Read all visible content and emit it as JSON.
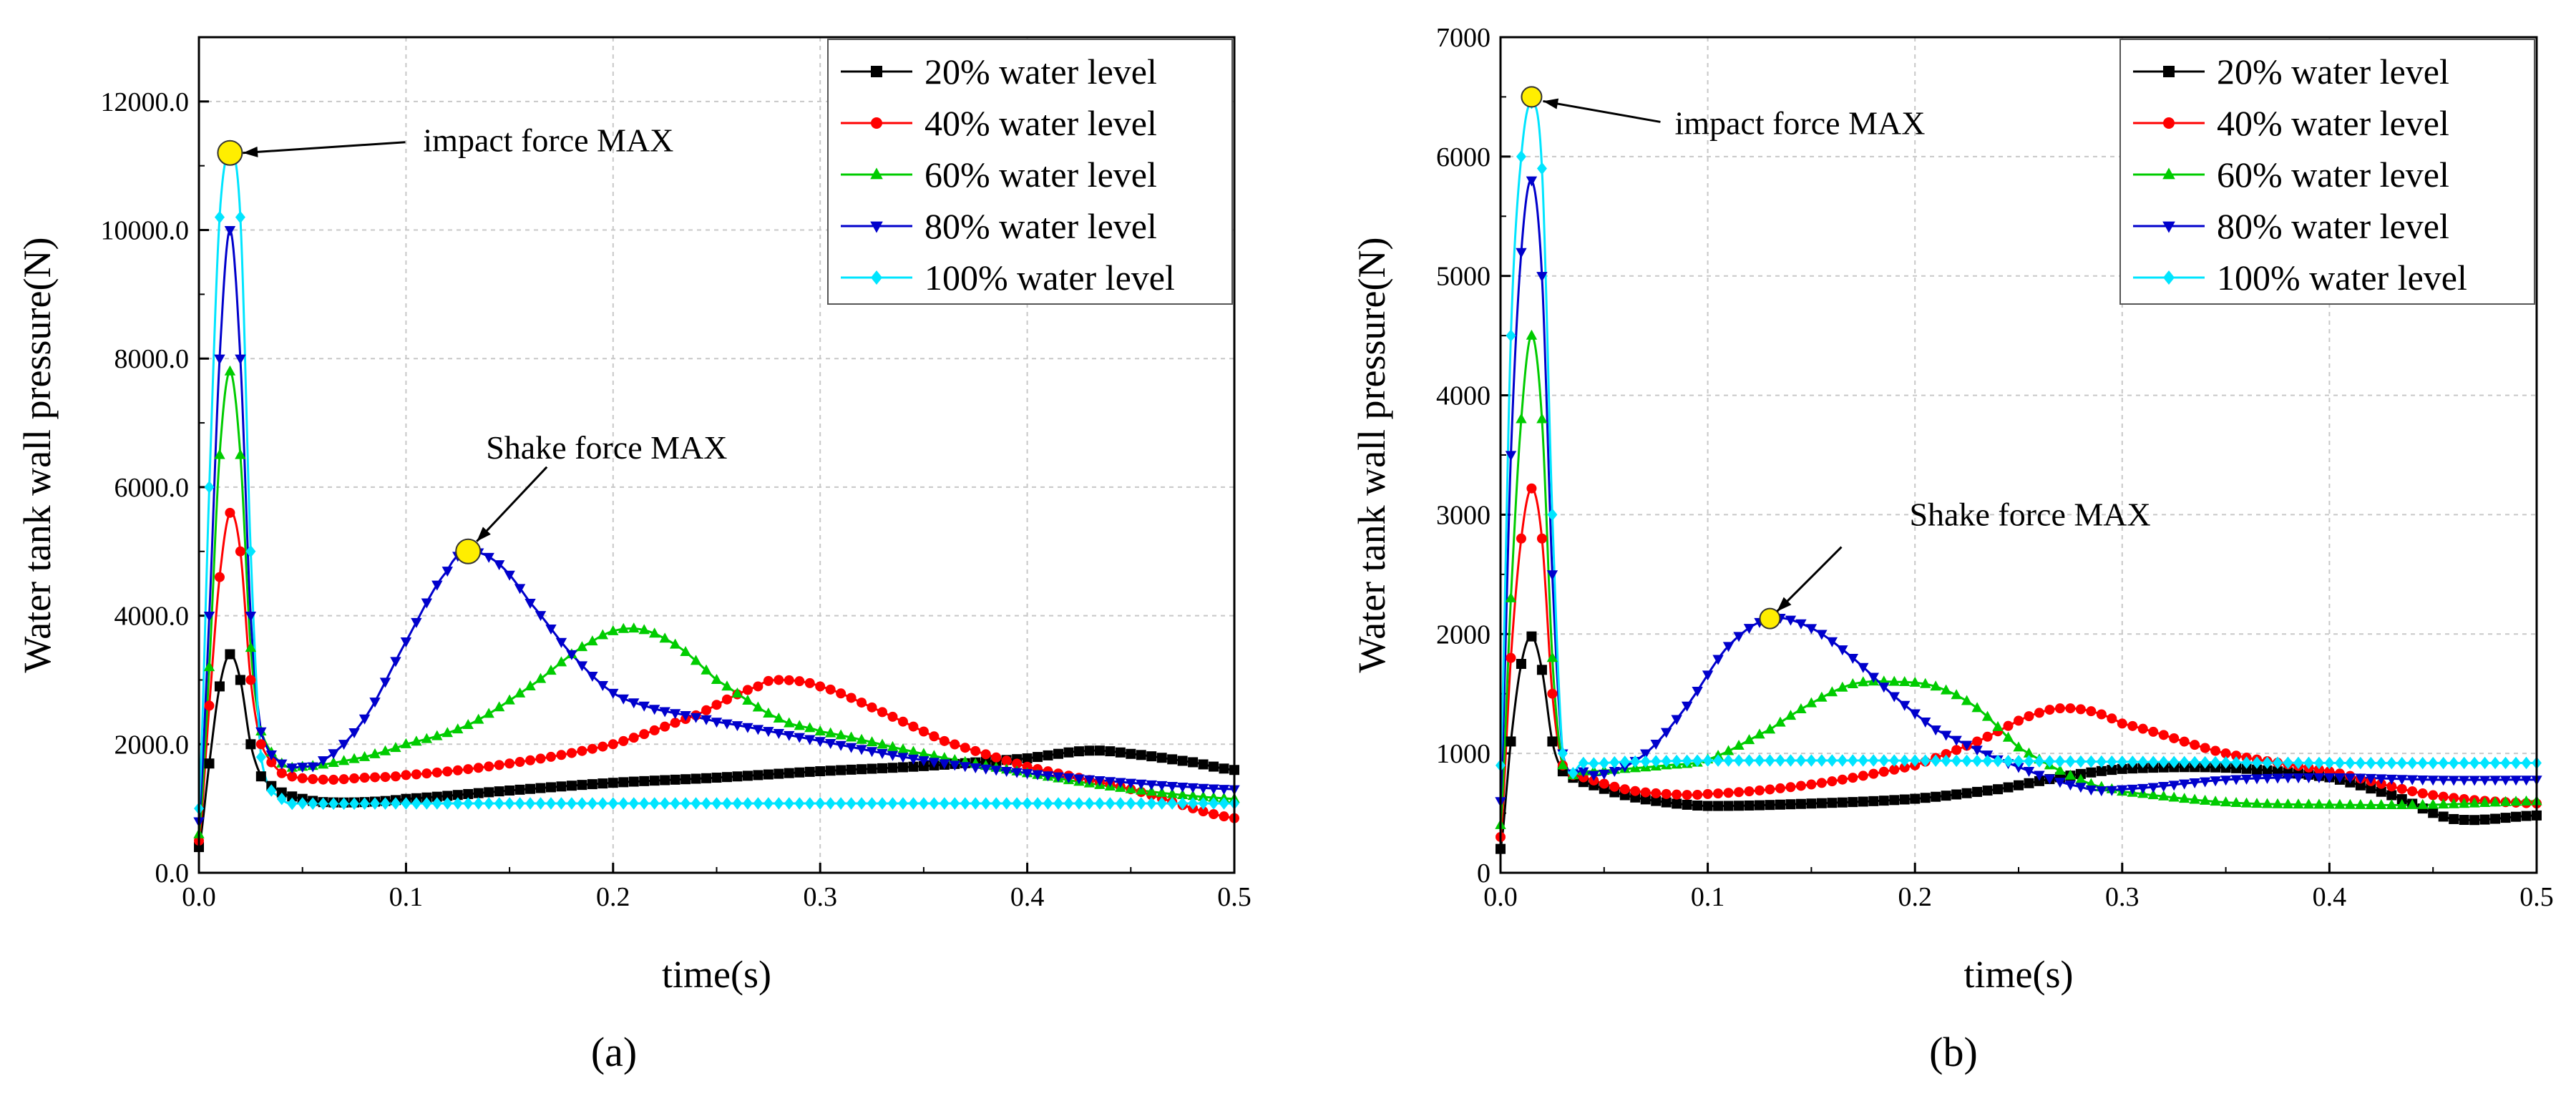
{
  "figure": {
    "panel_labels": [
      "(a)",
      "(b)"
    ]
  },
  "chart_data": [
    {
      "type": "line",
      "panel": "(a)",
      "xlabel": "time(s)",
      "ylabel": "Water tank wall pressure(N)",
      "xlim": [
        0,
        0.5
      ],
      "ylim": [
        0,
        13000
      ],
      "xticks": [
        0,
        0.1,
        0.2,
        0.3,
        0.4,
        0.5
      ],
      "xtick_labels": [
        "0.0",
        "0.1",
        "0.2",
        "0.3",
        "0.4",
        "0.5"
      ],
      "yticks": [
        0,
        2000,
        4000,
        6000,
        8000,
        10000,
        12000
      ],
      "ytick_labels": [
        "0.0",
        "2000.0",
        "4000.0",
        "6000.0",
        "8000.0",
        "10000.0",
        "12000.0"
      ],
      "grid": true,
      "legend_position": "top-right",
      "annotations": [
        {
          "text": "impact force MAX",
          "point": [
            0.015,
            11200
          ]
        },
        {
          "text": "Shake force MAX",
          "point": [
            0.13,
            5000
          ]
        }
      ],
      "series": [
        {
          "name": "20% water level",
          "color": "#000000",
          "marker": "square",
          "points": [
            [
              0,
              400
            ],
            [
              0.005,
              1700
            ],
            [
              0.01,
              2900
            ],
            [
              0.015,
              3400
            ],
            [
              0.02,
              3000
            ],
            [
              0.025,
              2000
            ],
            [
              0.03,
              1500
            ],
            [
              0.04,
              1250
            ],
            [
              0.05,
              1150
            ],
            [
              0.06,
              1100
            ],
            [
              0.08,
              1100
            ],
            [
              0.1,
              1150
            ],
            [
              0.15,
              1280
            ],
            [
              0.2,
              1400
            ],
            [
              0.25,
              1480
            ],
            [
              0.3,
              1580
            ],
            [
              0.35,
              1660
            ],
            [
              0.4,
              1780
            ],
            [
              0.43,
              1900
            ],
            [
              0.45,
              1850
            ],
            [
              0.48,
              1720
            ],
            [
              0.5,
              1600
            ]
          ]
        },
        {
          "name": "40% water level",
          "color": "#ff0000",
          "marker": "circle",
          "points": [
            [
              0,
              500
            ],
            [
              0.005,
              2600
            ],
            [
              0.01,
              4600
            ],
            [
              0.015,
              5600
            ],
            [
              0.02,
              5000
            ],
            [
              0.025,
              3000
            ],
            [
              0.03,
              2000
            ],
            [
              0.04,
              1550
            ],
            [
              0.06,
              1450
            ],
            [
              0.08,
              1480
            ],
            [
              0.1,
              1520
            ],
            [
              0.15,
              1700
            ],
            [
              0.2,
              2000
            ],
            [
              0.24,
              2450
            ],
            [
              0.27,
              2900
            ],
            [
              0.28,
              3000
            ],
            [
              0.3,
              2900
            ],
            [
              0.33,
              2500
            ],
            [
              0.36,
              2050
            ],
            [
              0.4,
              1650
            ],
            [
              0.45,
              1300
            ],
            [
              0.5,
              850
            ]
          ]
        },
        {
          "name": "60% water level",
          "color": "#00cc00",
          "marker": "triangle-up",
          "points": [
            [
              0,
              600
            ],
            [
              0.005,
              3200
            ],
            [
              0.01,
              6500
            ],
            [
              0.015,
              7800
            ],
            [
              0.02,
              6500
            ],
            [
              0.025,
              3500
            ],
            [
              0.03,
              2200
            ],
            [
              0.04,
              1700
            ],
            [
              0.05,
              1650
            ],
            [
              0.08,
              1800
            ],
            [
              0.1,
              2000
            ],
            [
              0.13,
              2300
            ],
            [
              0.16,
              2900
            ],
            [
              0.19,
              3600
            ],
            [
              0.21,
              3800
            ],
            [
              0.23,
              3550
            ],
            [
              0.25,
              3000
            ],
            [
              0.28,
              2400
            ],
            [
              0.3,
              2200
            ],
            [
              0.35,
              1850
            ],
            [
              0.4,
              1550
            ],
            [
              0.45,
              1300
            ],
            [
              0.5,
              1150
            ]
          ]
        },
        {
          "name": "80% water level",
          "color": "#0000cc",
          "marker": "triangle-down",
          "points": [
            [
              0,
              800
            ],
            [
              0.005,
              4000
            ],
            [
              0.01,
              8000
            ],
            [
              0.015,
              10000
            ],
            [
              0.02,
              8000
            ],
            [
              0.025,
              4000
            ],
            [
              0.03,
              2200
            ],
            [
              0.04,
              1700
            ],
            [
              0.05,
              1650
            ],
            [
              0.06,
              1750
            ],
            [
              0.08,
              2400
            ],
            [
              0.1,
              3600
            ],
            [
              0.12,
              4700
            ],
            [
              0.13,
              5000
            ],
            [
              0.145,
              4800
            ],
            [
              0.16,
              4200
            ],
            [
              0.18,
              3400
            ],
            [
              0.2,
              2800
            ],
            [
              0.22,
              2550
            ],
            [
              0.25,
              2350
            ],
            [
              0.3,
              2050
            ],
            [
              0.35,
              1750
            ],
            [
              0.4,
              1550
            ],
            [
              0.45,
              1400
            ],
            [
              0.5,
              1300
            ]
          ]
        },
        {
          "name": "100% water level",
          "color": "#00e5ff",
          "marker": "diamond",
          "points": [
            [
              0,
              1000
            ],
            [
              0.005,
              6000
            ],
            [
              0.01,
              10200
            ],
            [
              0.015,
              11200
            ],
            [
              0.02,
              10200
            ],
            [
              0.025,
              5000
            ],
            [
              0.03,
              1800
            ],
            [
              0.04,
              1150
            ],
            [
              0.05,
              1080
            ],
            [
              0.1,
              1080
            ],
            [
              0.2,
              1080
            ],
            [
              0.3,
              1080
            ],
            [
              0.4,
              1080
            ],
            [
              0.5,
              1080
            ]
          ]
        }
      ]
    },
    {
      "type": "line",
      "panel": "(b)",
      "xlabel": "time(s)",
      "ylabel": "Water tank wall pressure(N)",
      "xlim": [
        0,
        0.5
      ],
      "ylim": [
        0,
        7000
      ],
      "xticks": [
        0,
        0.1,
        0.2,
        0.3,
        0.4,
        0.5
      ],
      "xtick_labels": [
        "0.0",
        "0.1",
        "0.2",
        "0.3",
        "0.4",
        "0.5"
      ],
      "yticks": [
        0,
        1000,
        2000,
        3000,
        4000,
        5000,
        6000,
        7000
      ],
      "ytick_labels": [
        "0",
        "1000",
        "2000",
        "3000",
        "4000",
        "5000",
        "6000",
        "7000"
      ],
      "grid": true,
      "legend_position": "top-right",
      "annotations": [
        {
          "text": "impact force MAX",
          "point": [
            0.015,
            6500
          ]
        },
        {
          "text": "Shake force MAX",
          "point": [
            0.13,
            2130
          ]
        }
      ],
      "series": [
        {
          "name": "20% water level",
          "color": "#000000",
          "marker": "square",
          "points": [
            [
              0,
              200
            ],
            [
              0.005,
              1100
            ],
            [
              0.01,
              1750
            ],
            [
              0.015,
              1980
            ],
            [
              0.02,
              1700
            ],
            [
              0.025,
              1100
            ],
            [
              0.03,
              850
            ],
            [
              0.04,
              760
            ],
            [
              0.06,
              650
            ],
            [
              0.08,
              590
            ],
            [
              0.1,
              560
            ],
            [
              0.15,
              580
            ],
            [
              0.2,
              620
            ],
            [
              0.24,
              700
            ],
            [
              0.27,
              800
            ],
            [
              0.3,
              870
            ],
            [
              0.35,
              880
            ],
            [
              0.4,
              800
            ],
            [
              0.43,
              650
            ],
            [
              0.46,
              450
            ],
            [
              0.5,
              480
            ]
          ]
        },
        {
          "name": "40% water level",
          "color": "#ff0000",
          "marker": "circle",
          "points": [
            [
              0,
              300
            ],
            [
              0.005,
              1800
            ],
            [
              0.01,
              2800
            ],
            [
              0.015,
              3220
            ],
            [
              0.02,
              2800
            ],
            [
              0.025,
              1500
            ],
            [
              0.03,
              900
            ],
            [
              0.04,
              800
            ],
            [
              0.06,
              700
            ],
            [
              0.08,
              660
            ],
            [
              0.1,
              660
            ],
            [
              0.15,
              740
            ],
            [
              0.2,
              900
            ],
            [
              0.23,
              1100
            ],
            [
              0.26,
              1340
            ],
            [
              0.28,
              1370
            ],
            [
              0.3,
              1250
            ],
            [
              0.35,
              1000
            ],
            [
              0.4,
              850
            ],
            [
              0.45,
              650
            ],
            [
              0.5,
              580
            ]
          ]
        },
        {
          "name": "60% water level",
          "color": "#00cc00",
          "marker": "triangle-up",
          "points": [
            [
              0,
              400
            ],
            [
              0.005,
              2300
            ],
            [
              0.01,
              3800
            ],
            [
              0.015,
              4500
            ],
            [
              0.02,
              3800
            ],
            [
              0.025,
              1800
            ],
            [
              0.03,
              900
            ],
            [
              0.04,
              850
            ],
            [
              0.06,
              870
            ],
            [
              0.08,
              900
            ],
            [
              0.1,
              950
            ],
            [
              0.13,
              1200
            ],
            [
              0.15,
              1420
            ],
            [
              0.17,
              1580
            ],
            [
              0.19,
              1600
            ],
            [
              0.21,
              1560
            ],
            [
              0.23,
              1380
            ],
            [
              0.25,
              1050
            ],
            [
              0.28,
              780
            ],
            [
              0.3,
              680
            ],
            [
              0.35,
              590
            ],
            [
              0.4,
              570
            ],
            [
              0.45,
              570
            ],
            [
              0.5,
              600
            ]
          ]
        },
        {
          "name": "80% water level",
          "color": "#0000cc",
          "marker": "triangle-down",
          "points": [
            [
              0,
              600
            ],
            [
              0.005,
              3500
            ],
            [
              0.01,
              5200
            ],
            [
              0.015,
              5800
            ],
            [
              0.02,
              5000
            ],
            [
              0.025,
              2500
            ],
            [
              0.03,
              1000
            ],
            [
              0.04,
              850
            ],
            [
              0.05,
              830
            ],
            [
              0.07,
              1000
            ],
            [
              0.09,
              1400
            ],
            [
              0.11,
              1900
            ],
            [
              0.13,
              2130
            ],
            [
              0.15,
              2050
            ],
            [
              0.17,
              1800
            ],
            [
              0.19,
              1480
            ],
            [
              0.21,
              1200
            ],
            [
              0.24,
              950
            ],
            [
              0.28,
              720
            ],
            [
              0.3,
              700
            ],
            [
              0.35,
              780
            ],
            [
              0.4,
              800
            ],
            [
              0.45,
              780
            ],
            [
              0.5,
              780
            ]
          ]
        },
        {
          "name": "100% water level",
          "color": "#00e5ff",
          "marker": "diamond",
          "points": [
            [
              0,
              900
            ],
            [
              0.005,
              4500
            ],
            [
              0.01,
              6000
            ],
            [
              0.015,
              6450
            ],
            [
              0.02,
              5900
            ],
            [
              0.025,
              3000
            ],
            [
              0.03,
              1000
            ],
            [
              0.04,
              920
            ],
            [
              0.06,
              930
            ],
            [
              0.1,
              940
            ],
            [
              0.2,
              940
            ],
            [
              0.3,
              930
            ],
            [
              0.4,
              920
            ],
            [
              0.5,
              920
            ]
          ]
        }
      ]
    }
  ]
}
